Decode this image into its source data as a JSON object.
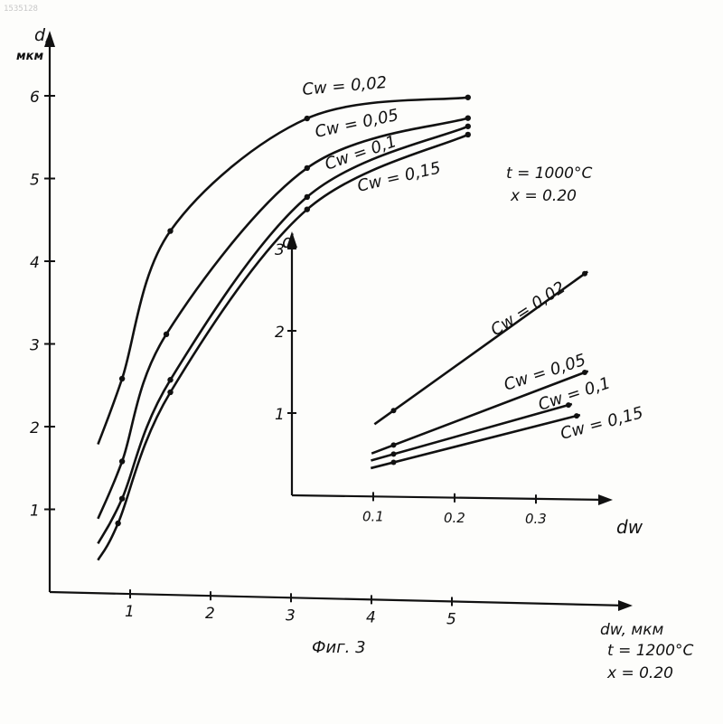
{
  "header": {
    "corner_id": "1535128"
  },
  "figure": {
    "caption": "Фиг. 3"
  },
  "chart_data": [
    {
      "type": "line",
      "ylabel_line1": "d,",
      "ylabel_line2": "мкм",
      "xlabel": "dw, мкм",
      "x_ticks": [
        "1",
        "2",
        "3",
        "4",
        "5"
      ],
      "y_ticks": [
        "1",
        "2",
        "3",
        "4",
        "5",
        "6"
      ],
      "xlim": [
        0,
        7.1
      ],
      "ylim": [
        0,
        6.9
      ],
      "grid": false,
      "conditions": [
        "t = 1200°C",
        "x = 0.20"
      ],
      "series": [
        {
          "name": "Cw = 0,02",
          "points": [
            [
              0.6,
              1.8
            ],
            [
              0.9,
              2.6
            ],
            [
              1.5,
              4.4
            ],
            [
              3.2,
              5.8
            ],
            [
              5.2,
              6.1
            ]
          ]
        },
        {
          "name": "Cw = 0,05",
          "points": [
            [
              0.6,
              0.9
            ],
            [
              0.9,
              1.6
            ],
            [
              1.45,
              3.15
            ],
            [
              3.2,
              5.2
            ],
            [
              5.2,
              5.85
            ]
          ]
        },
        {
          "name": "Cw = 0,1",
          "points": [
            [
              0.6,
              0.6
            ],
            [
              0.9,
              1.15
            ],
            [
              1.5,
              2.6
            ],
            [
              3.2,
              4.85
            ],
            [
              5.2,
              5.75
            ]
          ]
        },
        {
          "name": "Cw = 0,15",
          "points": [
            [
              0.6,
              0.4
            ],
            [
              0.85,
              0.85
            ],
            [
              1.5,
              2.45
            ],
            [
              3.2,
              4.7
            ],
            [
              5.2,
              5.65
            ]
          ]
        }
      ]
    },
    {
      "type": "line",
      "ylabel": "d",
      "xlabel": "dw",
      "x_ticks": [
        "0.1",
        "0.2",
        "0.3"
      ],
      "y_ticks": [
        "1",
        "2",
        "3"
      ],
      "xlim": [
        0,
        0.42
      ],
      "ylim": [
        0,
        3.25
      ],
      "grid": false,
      "conditions": [
        "t = 1000°C",
        "x = 0.20"
      ],
      "series": [
        {
          "name": "Cw = 0,02",
          "points": [
            [
              0.125,
              1.05
            ],
            [
              0.36,
              2.75
            ]
          ]
        },
        {
          "name": "Cw = 0,05",
          "points": [
            [
              0.125,
              0.63
            ],
            [
              0.36,
              1.55
            ]
          ]
        },
        {
          "name": "Cw = 0,1",
          "points": [
            [
              0.125,
              0.52
            ],
            [
              0.34,
              1.15
            ]
          ]
        },
        {
          "name": "Cw = 0,15",
          "points": [
            [
              0.125,
              0.42
            ],
            [
              0.35,
              1.02
            ]
          ]
        }
      ]
    }
  ]
}
